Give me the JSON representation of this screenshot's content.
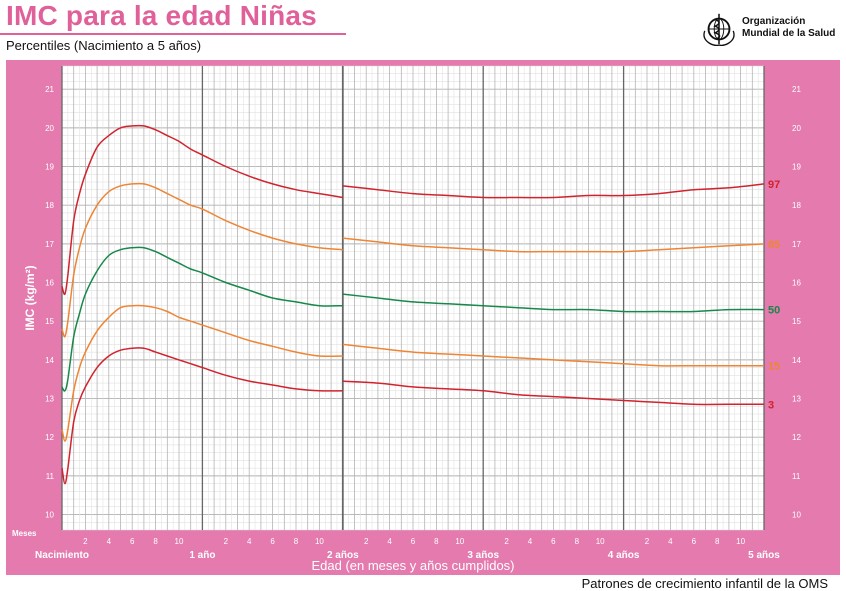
{
  "header": {
    "title": "IMC para la edad Niñas",
    "subtitle": "Percentiles (Nacimiento a 5 años)",
    "org_line1": "Organización",
    "org_line2": "Mundial de la Salud",
    "logo_icon": "who-emblem-icon"
  },
  "footer": {
    "text": "Patrones de crecimiento infantil de la OMS"
  },
  "colors": {
    "frame": "#e47aae",
    "p97": "#d0232e",
    "p85": "#ee8534",
    "p50": "#17884a",
    "p15": "#ee8534",
    "p3": "#d0232e"
  },
  "chart_data": {
    "type": "line",
    "title": "IMC para la edad Niñas",
    "subtitle": "Percentiles (Nacimiento a 5 años)",
    "xlabel": "Edad (en meses y años cumplidos)",
    "ylabel": "IMC (kg/m²)",
    "x_unit_label": "Meses",
    "xlim": [
      0,
      60
    ],
    "ylim": [
      9.6,
      21.6
    ],
    "grid": true,
    "y_ticks": [
      10,
      11,
      12,
      13,
      14,
      15,
      16,
      17,
      18,
      19,
      20,
      21
    ],
    "x_minor_ticks": [
      "2",
      "4",
      "6",
      "8",
      "10"
    ],
    "x_year_ticks": [
      {
        "month": 0,
        "label": "Nacimiento"
      },
      {
        "month": 12,
        "label": "1 año"
      },
      {
        "month": 24,
        "label": "2 años"
      },
      {
        "month": 36,
        "label": "3 años"
      },
      {
        "month": 48,
        "label": "4 años"
      },
      {
        "month": 60,
        "label": "5 años"
      }
    ],
    "series": [
      {
        "name": "97",
        "color_key": "p97",
        "segments": [
          {
            "x": [
              0,
              0.25,
              0.5,
              1,
              1.5,
              2,
              3,
              4,
              5,
              6,
              7,
              8,
              9,
              10,
              11,
              12,
              14,
              16,
              18,
              20,
              22,
              24
            ],
            "y": [
              15.9,
              15.7,
              16.2,
              17.6,
              18.3,
              18.8,
              19.5,
              19.8,
              20.0,
              20.05,
              20.05,
              19.95,
              19.8,
              19.65,
              19.45,
              19.3,
              19.0,
              18.75,
              18.55,
              18.4,
              18.3,
              18.2
            ]
          },
          {
            "x": [
              24,
              27,
              30,
              33,
              36,
              39,
              42,
              45,
              48,
              51,
              54,
              57,
              60
            ],
            "y": [
              18.5,
              18.4,
              18.3,
              18.25,
              18.2,
              18.2,
              18.2,
              18.25,
              18.25,
              18.3,
              18.4,
              18.45,
              18.55
            ]
          }
        ]
      },
      {
        "name": "85",
        "color_key": "p85",
        "segments": [
          {
            "x": [
              0,
              0.25,
              0.5,
              1,
              1.5,
              2,
              3,
              4,
              5,
              6,
              7,
              8,
              9,
              10,
              11,
              12,
              14,
              16,
              18,
              20,
              22,
              24
            ],
            "y": [
              14.8,
              14.6,
              15.0,
              16.2,
              16.9,
              17.4,
              18.0,
              18.35,
              18.5,
              18.55,
              18.55,
              18.45,
              18.3,
              18.15,
              18.0,
              17.9,
              17.6,
              17.35,
              17.15,
              17.0,
              16.9,
              16.85
            ]
          },
          {
            "x": [
              24,
              27,
              30,
              33,
              36,
              39,
              42,
              45,
              48,
              51,
              54,
              57,
              60
            ],
            "y": [
              17.15,
              17.05,
              16.95,
              16.9,
              16.85,
              16.8,
              16.8,
              16.8,
              16.8,
              16.85,
              16.9,
              16.95,
              17.0
            ]
          }
        ]
      },
      {
        "name": "50",
        "color_key": "p50",
        "segments": [
          {
            "x": [
              0,
              0.25,
              0.5,
              1,
              1.5,
              2,
              3,
              4,
              5,
              6,
              7,
              8,
              9,
              10,
              11,
              12,
              14,
              16,
              18,
              20,
              22,
              24
            ],
            "y": [
              13.3,
              13.2,
              13.5,
              14.6,
              15.2,
              15.7,
              16.3,
              16.7,
              16.85,
              16.9,
              16.9,
              16.8,
              16.65,
              16.5,
              16.35,
              16.25,
              16.0,
              15.8,
              15.6,
              15.5,
              15.4,
              15.4
            ]
          },
          {
            "x": [
              24,
              27,
              30,
              33,
              36,
              39,
              42,
              45,
              48,
              51,
              54,
              57,
              60
            ],
            "y": [
              15.7,
              15.6,
              15.5,
              15.45,
              15.4,
              15.35,
              15.3,
              15.3,
              15.25,
              15.25,
              15.25,
              15.3,
              15.3
            ]
          }
        ]
      },
      {
        "name": "15",
        "color_key": "p15",
        "segments": [
          {
            "x": [
              0,
              0.25,
              0.5,
              1,
              1.5,
              2,
              3,
              4,
              5,
              6,
              7,
              8,
              9,
              10,
              11,
              12,
              14,
              16,
              18,
              20,
              22,
              24
            ],
            "y": [
              12.2,
              11.9,
              12.2,
              13.2,
              13.8,
              14.2,
              14.75,
              15.1,
              15.35,
              15.4,
              15.4,
              15.35,
              15.25,
              15.1,
              15.0,
              14.9,
              14.7,
              14.5,
              14.35,
              14.2,
              14.1,
              14.1
            ]
          },
          {
            "x": [
              24,
              27,
              30,
              33,
              36,
              39,
              42,
              45,
              48,
              51,
              54,
              57,
              60
            ],
            "y": [
              14.4,
              14.3,
              14.2,
              14.15,
              14.1,
              14.05,
              14.0,
              13.95,
              13.9,
              13.85,
              13.85,
              13.85,
              13.85
            ]
          }
        ]
      },
      {
        "name": "3",
        "color_key": "p3",
        "segments": [
          {
            "x": [
              0,
              0.25,
              0.5,
              1,
              1.5,
              2,
              3,
              4,
              5,
              6,
              7,
              8,
              9,
              10,
              11,
              12,
              14,
              16,
              18,
              20,
              22,
              24
            ],
            "y": [
              11.2,
              10.8,
              11.2,
              12.4,
              12.95,
              13.3,
              13.8,
              14.1,
              14.25,
              14.3,
              14.3,
              14.2,
              14.1,
              14.0,
              13.9,
              13.8,
              13.6,
              13.45,
              13.35,
              13.25,
              13.2,
              13.2
            ]
          },
          {
            "x": [
              24,
              27,
              30,
              33,
              36,
              39,
              42,
              45,
              48,
              51,
              54,
              57,
              60
            ],
            "y": [
              13.45,
              13.4,
              13.3,
              13.25,
              13.2,
              13.1,
              13.05,
              13.0,
              12.95,
              12.9,
              12.85,
              12.85,
              12.85
            ]
          }
        ]
      }
    ]
  }
}
